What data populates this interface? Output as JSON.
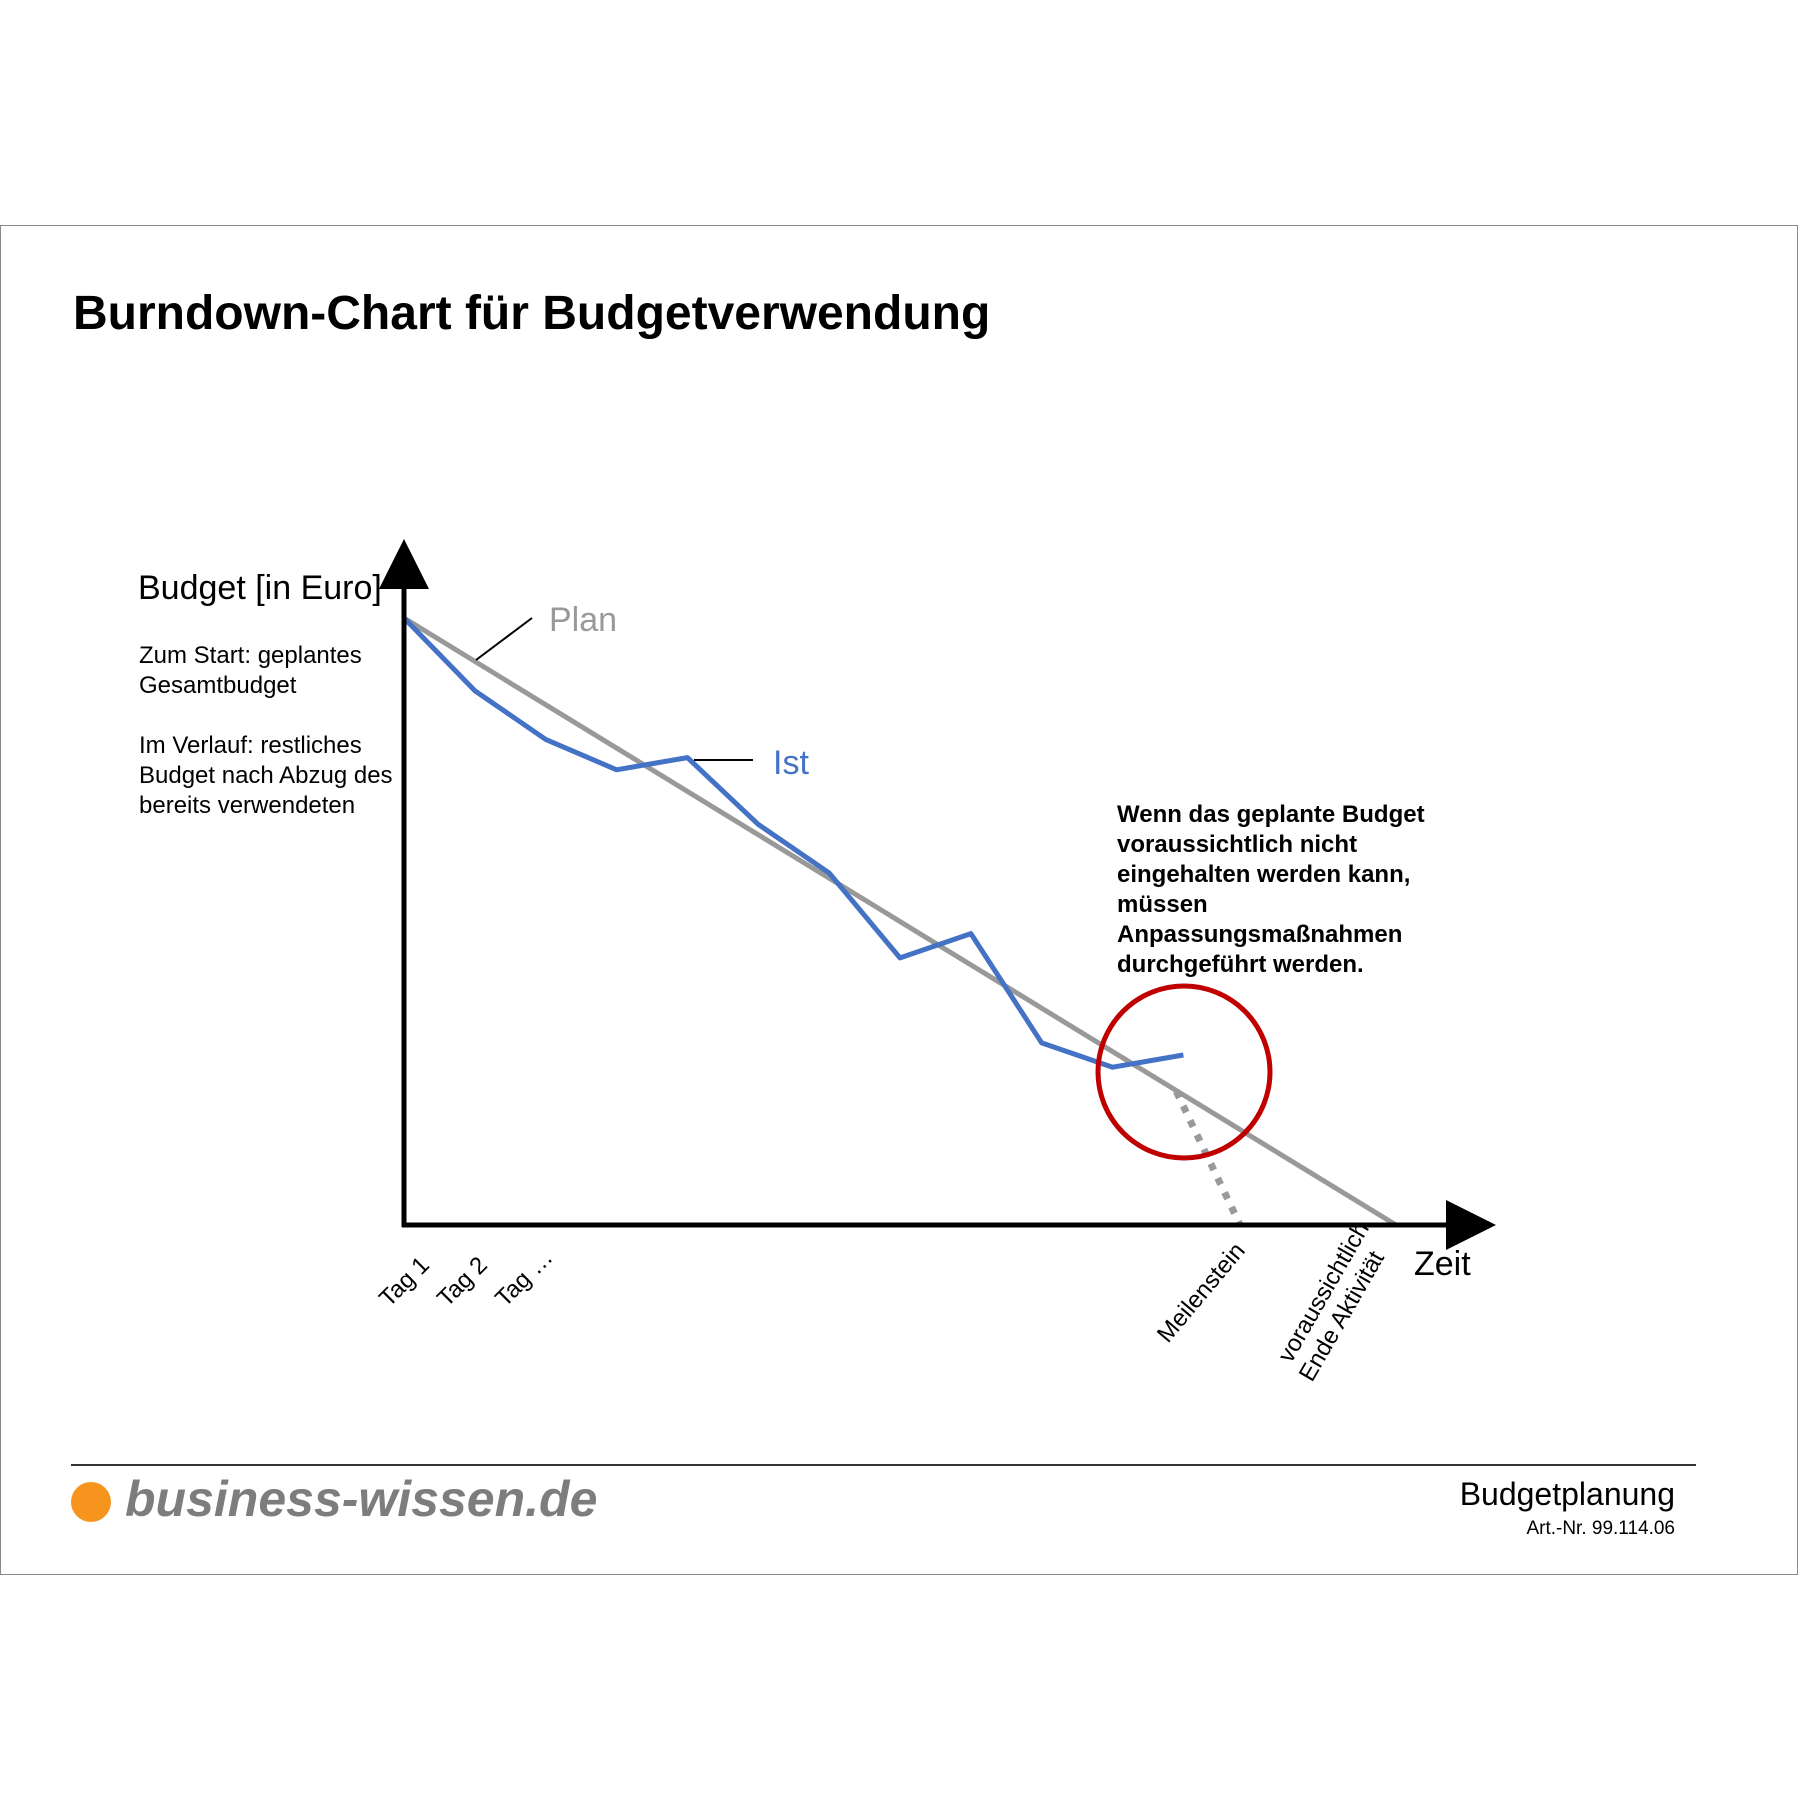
{
  "title": "Burndown-Chart für Budgetverwendung",
  "y_axis": {
    "title": "Budget [in Euro]",
    "note_start": "Zum Start: geplantes Gesamtbudget",
    "note_progress": "Im Verlauf: restliches Budget nach Abzug des bereits verwendeten"
  },
  "x_axis": {
    "title": "Zeit",
    "ticks": [
      "Tag 1",
      "Tag 2",
      "Tag …"
    ],
    "milestone_label": "Meilenstein",
    "end_label_line1": "voraussichtlich",
    "end_label_line2": "Ende Aktivität"
  },
  "callout": "Wenn das geplante Budget voraussichtlich nicht eingehalten werden kann, müssen Anpassungsmaßnahmen durchgeführt werden.",
  "chart_data": {
    "type": "line",
    "xlim": [
      1,
      15
    ],
    "ylim": [
      0,
      100
    ],
    "grid": false,
    "series": [
      {
        "name": "Plan",
        "color": "#999999",
        "x": [
          1,
          15
        ],
        "y": [
          100,
          0
        ]
      },
      {
        "name": "Ist",
        "color": "#4472c4",
        "x": [
          1,
          2,
          3,
          4,
          5,
          6,
          7,
          8,
          9,
          10,
          11,
          12
        ],
        "y": [
          100,
          88,
          80,
          75,
          77,
          66,
          58,
          44,
          48,
          30,
          26,
          28
        ]
      },
      {
        "name": "",
        "style": "dotted",
        "color": "#999999",
        "x": [
          11.9,
          12.8
        ],
        "y": [
          22,
          0
        ]
      }
    ],
    "highlight": {
      "shape": "circle",
      "color": "#c00000"
    }
  },
  "footer": {
    "logo_text": "business-wissen.de",
    "logo_color": "#f7941d",
    "topic": "Budgetplanung",
    "article_number": "Art.-Nr. 99.114.06"
  }
}
